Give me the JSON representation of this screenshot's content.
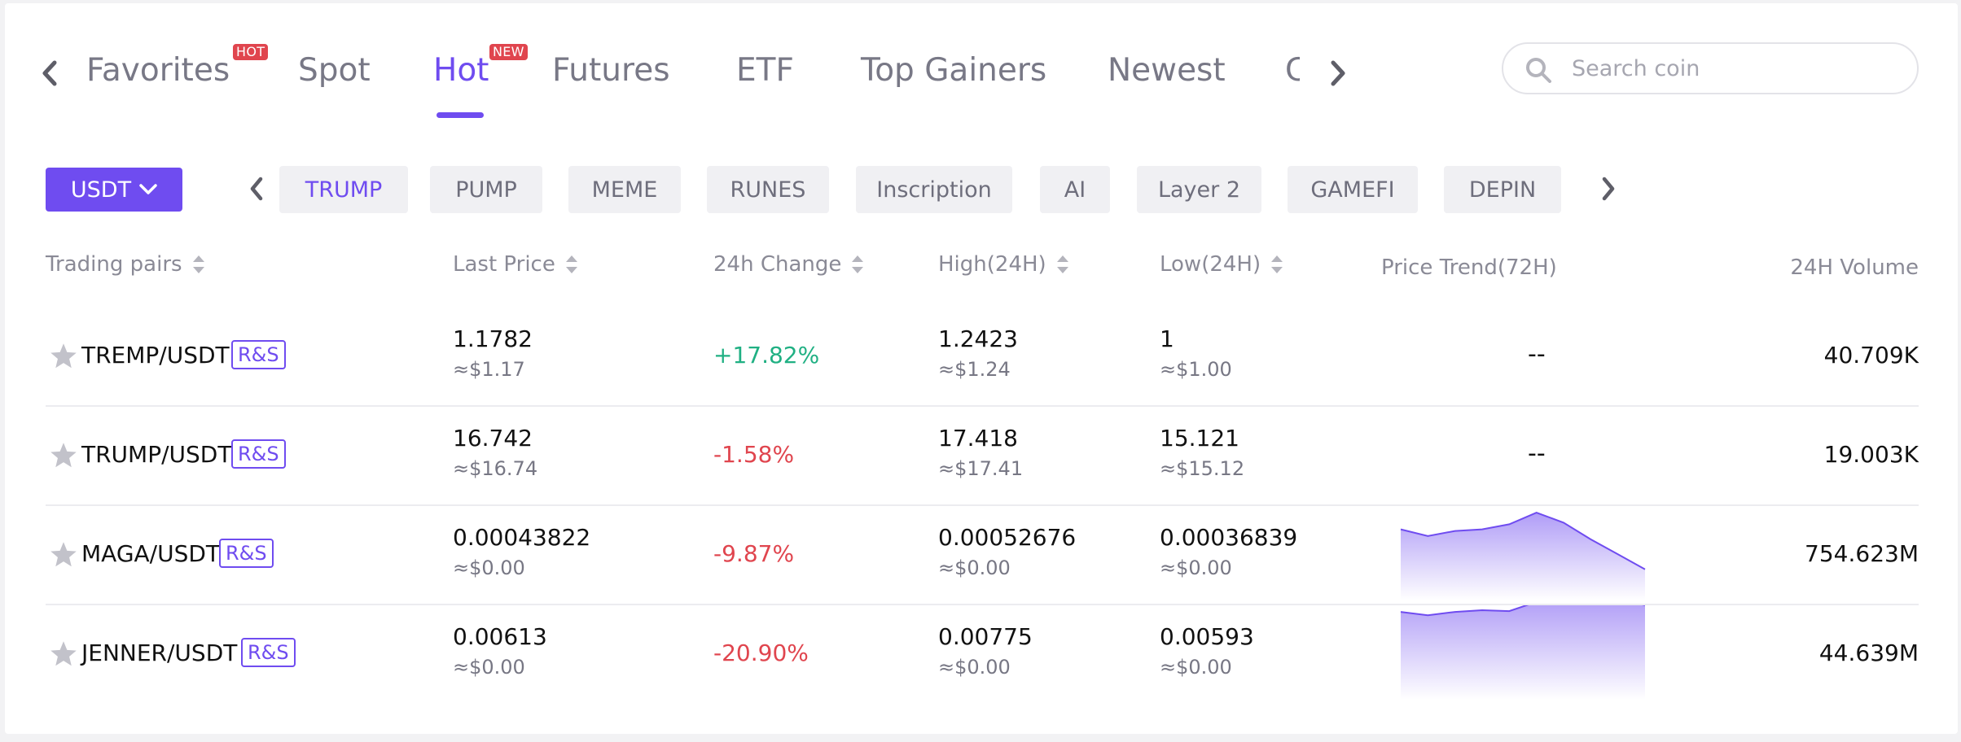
{
  "tabs": {
    "items": [
      {
        "label": "Favorites",
        "badge": "HOT"
      },
      {
        "label": "Spot"
      },
      {
        "label": "Hot",
        "badge": "NEW",
        "active": true
      },
      {
        "label": "Futures"
      },
      {
        "label": "ETF"
      },
      {
        "label": "Top Gainers"
      },
      {
        "label": "Newest"
      },
      {
        "label": "C"
      }
    ]
  },
  "search": {
    "placeholder": "Search coin",
    "value": ""
  },
  "quote": {
    "label": "USDT"
  },
  "chips": [
    "TRUMP",
    "PUMP",
    "MEME",
    "RUNES",
    "Inscription",
    "AI",
    "Layer 2",
    "GAMEFI",
    "DEPIN"
  ],
  "active_chip": "TRUMP",
  "table": {
    "headers": {
      "pair": "Trading pairs",
      "last_price": "Last Price",
      "change": "24h Change",
      "high": "High(24H)",
      "low": "Low(24H)",
      "trend": "Price Trend(72H)",
      "volume": "24H Volume"
    },
    "rows": [
      {
        "pair": "TREMP/USDT",
        "tag": "R&S",
        "price": "1.1782",
        "price_usd": "≈$1.17",
        "change": "+17.82%",
        "direction": "up",
        "high": "1.2423",
        "high_usd": "≈$1.24",
        "low": "1",
        "low_usd": "≈$1.00",
        "trend_text": "--",
        "trend": [],
        "volume": "40.709K"
      },
      {
        "pair": "TRUMP/USDT",
        "tag": "R&S",
        "price": "16.742",
        "price_usd": "≈$16.74",
        "change": "-1.58%",
        "direction": "down",
        "high": "17.418",
        "high_usd": "≈$17.41",
        "low": "15.121",
        "low_usd": "≈$15.12",
        "trend_text": "--",
        "trend": [],
        "volume": "19.003K"
      },
      {
        "pair": "MAGA/USDT",
        "tag": "R&S",
        "price": "0.00043822",
        "price_usd": "≈$0.00",
        "change": "-9.87%",
        "direction": "down",
        "high": "0.00052676",
        "high_usd": "≈$0.00",
        "low": "0.00036839",
        "low_usd": "≈$0.00",
        "trend_text": "",
        "trend": [
          0.5,
          0.46,
          0.49,
          0.5,
          0.53,
          0.6,
          0.54,
          0.44,
          0.35,
          0.26
        ],
        "volume": "754.623M"
      },
      {
        "pair": "JENNER/USDT",
        "tag": "R&S",
        "price": "0.00613",
        "price_usd": "≈$0.00",
        "change": "-20.90%",
        "direction": "down",
        "high": "0.00775",
        "high_usd": "≈$0.00",
        "low": "0.00593",
        "low_usd": "≈$0.00",
        "trend_text": "",
        "trend": [
          0.6,
          0.58,
          0.6,
          0.61,
          0.605,
          0.66,
          0.655,
          0.665,
          0.68,
          0.64
        ],
        "volume": "44.639M"
      }
    ]
  },
  "colors": {
    "accent": "#6f4cf0",
    "up": "#20b083",
    "down": "#e0454e",
    "badge": "#e0454e"
  },
  "icons": [
    "chevron-left-icon",
    "chevron-right-icon",
    "search-icon",
    "chevron-down-icon",
    "sort-icon",
    "star-icon"
  ]
}
